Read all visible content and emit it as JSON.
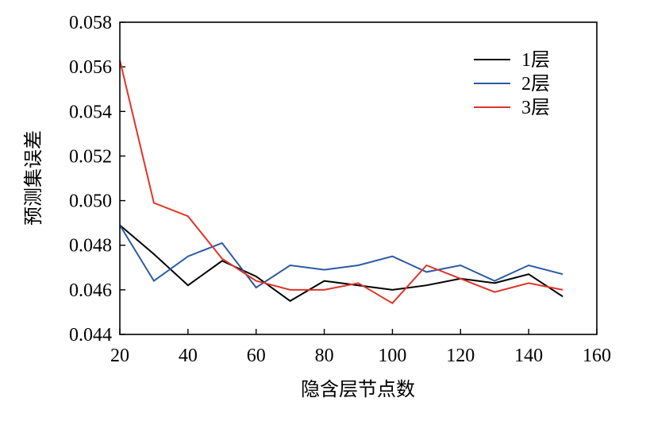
{
  "chart_data": {
    "type": "line",
    "title": "",
    "xlabel": "隐含层节点数",
    "ylabel": "预测集误差",
    "xlim": [
      20,
      160
    ],
    "ylim": [
      0.044,
      0.058
    ],
    "xticks": [
      20,
      40,
      60,
      80,
      100,
      120,
      140,
      160
    ],
    "xtick_labels": [
      "20",
      "40",
      "60",
      "80",
      "100",
      "120",
      "140",
      "160"
    ],
    "yticks": [
      0.044,
      0.046,
      0.048,
      0.05,
      0.052,
      0.054,
      0.056,
      0.058
    ],
    "ytick_labels": [
      "0.044",
      "0.046",
      "0.048",
      "0.050",
      "0.052",
      "0.054",
      "0.056",
      "0.058"
    ],
    "grid": false,
    "legend_position": "top-right",
    "x": [
      20,
      30,
      40,
      50,
      60,
      70,
      80,
      90,
      100,
      110,
      120,
      130,
      140,
      150
    ],
    "series": [
      {
        "name": "1层",
        "color": "#000000",
        "values": [
          0.0489,
          0.0476,
          0.0462,
          0.0473,
          0.0466,
          0.0455,
          0.0464,
          0.0462,
          0.046,
          0.0462,
          0.0465,
          0.0463,
          0.0467,
          0.0457
        ]
      },
      {
        "name": "2层",
        "color": "#2c5aa0",
        "values": [
          0.0489,
          0.0464,
          0.0475,
          0.0481,
          0.0461,
          0.0471,
          0.0469,
          0.0471,
          0.0475,
          0.0468,
          0.0471,
          0.0464,
          0.0471,
          0.0467
        ]
      },
      {
        "name": "3层",
        "color": "#e0342a",
        "values": [
          0.0563,
          0.0499,
          0.0493,
          0.0474,
          0.0464,
          0.046,
          0.046,
          0.0463,
          0.0454,
          0.0471,
          0.0465,
          0.0459,
          0.0463,
          0.046
        ]
      }
    ]
  }
}
